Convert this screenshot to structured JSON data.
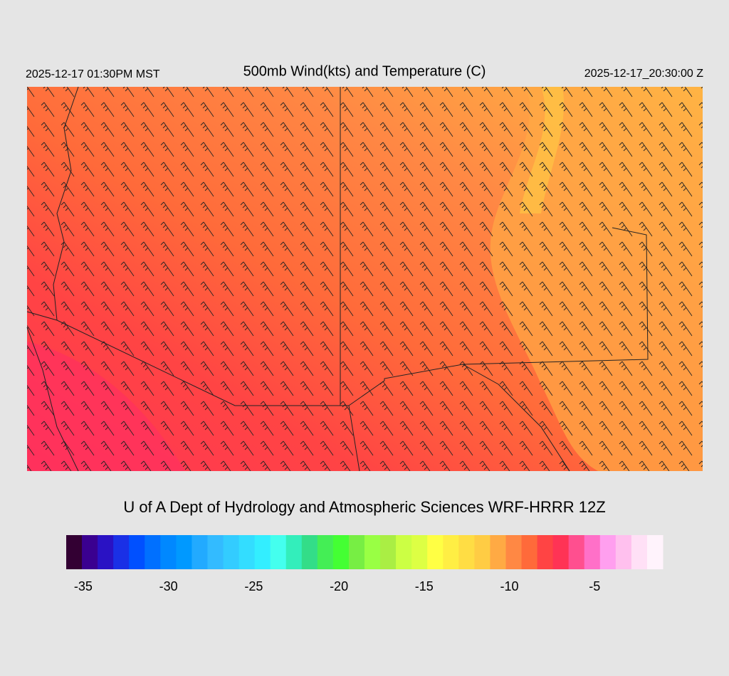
{
  "header": {
    "local_time": "2025-12-17 01:30PM MST",
    "title": "500mb Wind(kts) and Temperature (C)",
    "utc_time": "2025-12-17_20:30:00 Z"
  },
  "credit": "U of A Dept of Hydrology and Atmospheric Sciences WRF-HRRR 12Z",
  "colorbar": {
    "range": [
      -36,
      -1
    ],
    "ticks": [
      -35,
      -30,
      -25,
      -20,
      -15,
      -10,
      -5
    ],
    "colors": [
      "#330033",
      "#3a0090",
      "#2a12c4",
      "#1a30e6",
      "#0050ff",
      "#0070ff",
      "#0088ff",
      "#0099ff",
      "#22aaff",
      "#33bbff",
      "#33ccff",
      "#33ddff",
      "#33eeff",
      "#44ffee",
      "#33eebb",
      "#33dd88",
      "#44ee55",
      "#44ff33",
      "#77ee44",
      "#99ff44",
      "#aaee44",
      "#ccff44",
      "#ddff44",
      "#ffff44",
      "#ffee44",
      "#ffdd44",
      "#ffcc44",
      "#ffaa44",
      "#ff8844",
      "#ff6a3a",
      "#ff4444",
      "#ff3355",
      "#ff4f8f",
      "#ff70c8",
      "#ff9fef",
      "#ffc0ee",
      "#ffe0f6",
      "#fff3fc"
    ]
  }
}
